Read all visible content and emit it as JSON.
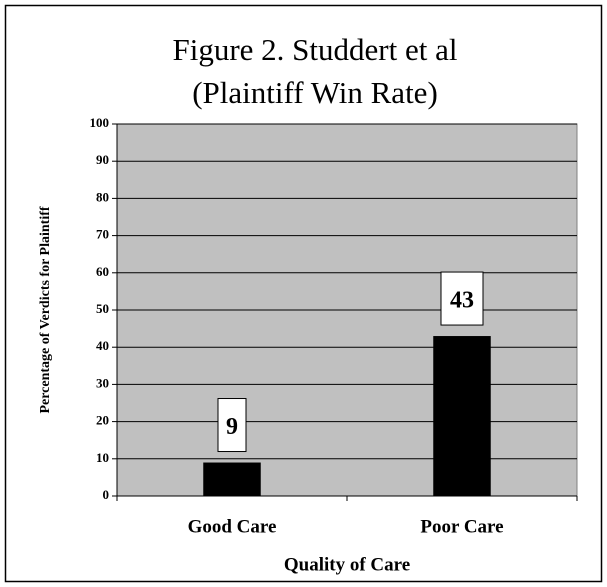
{
  "chart_data": {
    "type": "bar",
    "title": [
      "Figure 2.  Studdert et al",
      "(Plaintiff Win Rate)"
    ],
    "categories": [
      "Good Care",
      "Poor Care"
    ],
    "values": [
      9,
      43
    ],
    "color": "#000000",
    "background": "#c0c0c0",
    "xlabel": "Quality of Care",
    "ylabel": "Percentage of Verdicts for Plaintiff",
    "ylim": [
      0,
      100
    ],
    "yticks": [
      0,
      10,
      20,
      30,
      40,
      50,
      60,
      70,
      80,
      90,
      100
    ],
    "grid": true,
    "data_labels": true
  }
}
